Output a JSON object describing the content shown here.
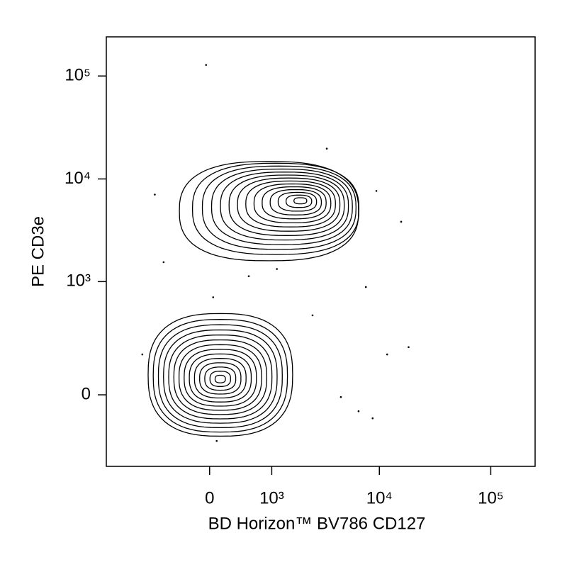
{
  "chart_data": {
    "type": "contour",
    "x_label": "BD Horizon™ BV786 CD127",
    "y_label": "PE CD3e",
    "scale": "biexponential",
    "xlim": [
      -2500,
      250000
    ],
    "ylim": [
      -380,
      240000
    ],
    "xticks": [
      0,
      {
        "value": 1000,
        "label": "10³"
      },
      {
        "value": 10000,
        "label": "10⁴"
      },
      {
        "value": 100000,
        "label": "10⁵"
      }
    ],
    "yticks": [
      0,
      {
        "value": 1000,
        "label": "10³"
      },
      {
        "value": 10000,
        "label": "10⁴"
      },
      {
        "value": 100000,
        "label": "10⁵"
      }
    ],
    "contour_levels": 14,
    "color": "#000000",
    "populations": [
      {
        "x_range": [
          -400,
          6500
        ],
        "y_range": [
          1600,
          14800
        ],
        "peak_x": 1970,
        "peak_y": 6200
      },
      {
        "x_range": [
          -985,
          1615
        ],
        "y_range": [
          -170,
          480
        ],
        "peak_x": 133,
        "peak_y": 57
      }
    ],
    "events": {
      "x": [
        -44,
        -834,
        15700,
        7560,
        18300,
        11750,
        8700,
        4500,
        2480,
        44,
        540,
        -660,
        3350,
        9400,
        88,
        -1130,
        6500,
        1130
      ],
      "y": [
        128000,
        7050,
        3840,
        885,
        205,
        165,
        -88,
        -8,
        460,
        700,
        1130,
        1550,
        19700,
        7650,
        -196,
        165,
        -60,
        1330
      ]
    }
  }
}
